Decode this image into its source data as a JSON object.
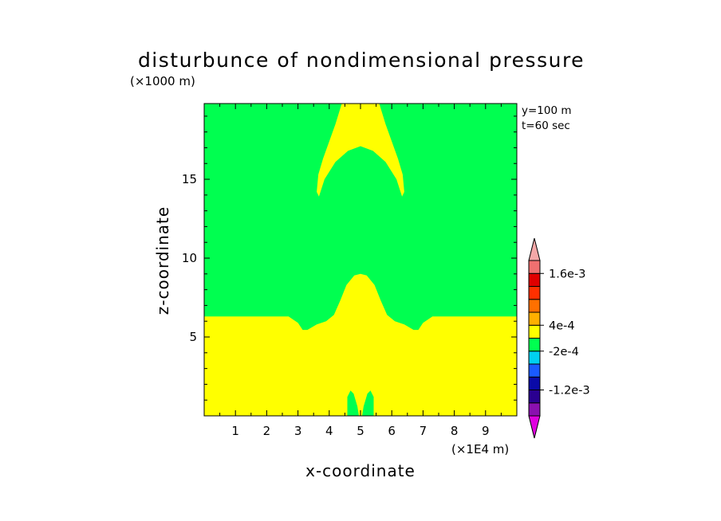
{
  "chart_data": {
    "type": "heatmap",
    "title": "disturbunce of nondimensional pressure",
    "xlabel": "x-coordinate",
    "ylabel": "z-coordinate",
    "x_unit": "(×1E4 m)",
    "y_unit": "(×1000 m)",
    "xlim": [
      0,
      10
    ],
    "ylim": [
      0,
      19.8
    ],
    "xticks": [
      "1",
      "2",
      "3",
      "4",
      "5",
      "6",
      "7",
      "8",
      "9"
    ],
    "yticks": [
      "5",
      "10",
      "15"
    ],
    "annotations": [
      "y=100 m",
      "t=60 sec"
    ],
    "background_band": "-2e-4 to 1e-4",
    "regions": [
      {
        "band": "1e-4 to 4e-4",
        "description": "lower layer z < ~6.3 with a bump peaking near x=5, z=9"
      },
      {
        "band": "1e-4 to 4e-4",
        "description": "arch-shaped region centred at x=5 between z~13.9 and top"
      },
      {
        "band": "-2e-4 to 1e-4",
        "description": "two small columns near x=4.7 and x=5.3 at the bottom, z < 1.6"
      }
    ],
    "colorbar": {
      "levels": [
        "-1.2e-3",
        "-2e-4",
        "4e-4",
        "1.6e-3"
      ],
      "colors": [
        "#e000e0",
        "#8a10b0",
        "#2a0090",
        "#0a0aa8",
        "#1a5aff",
        "#00d0f0",
        "#00ff50",
        "#ffff00",
        "#ffb000",
        "#ff7000",
        "#ff3000",
        "#e00000",
        "#f07070",
        "#f4a8a8"
      ]
    }
  }
}
